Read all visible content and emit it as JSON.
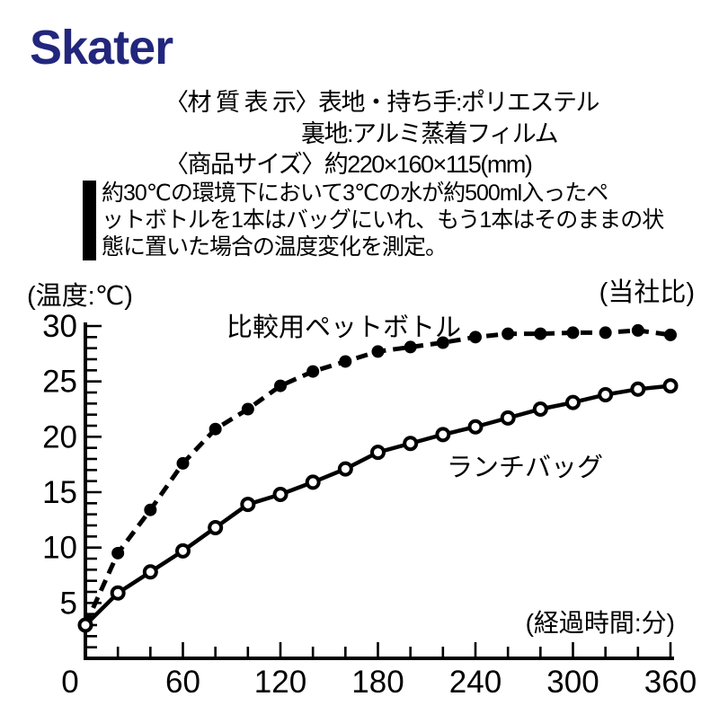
{
  "brand": {
    "logo_text": "Skater",
    "logo_color": "#22277d"
  },
  "specs": {
    "material_line1": "〈材 質 表 示〉表地・持ち手:ポリエステル",
    "material_line2": "裏地:アルミ蒸着フィルム",
    "size_line": "〈商品サイズ〉約220×160×115(mm)"
  },
  "description": {
    "lines": [
      "約30℃の環境下において3℃の水が約500ml入ったペ",
      "ットボトルを1本はバッグにいれ、もう1本はそのままの状",
      "態に置いた場合の温度変化を測定。"
    ]
  },
  "chart_data": {
    "type": "line",
    "title": "",
    "y_axis_label": "(温度:℃)",
    "x_axis_label": "(経過時間:分)",
    "top_right_note": "(当社比)",
    "x": [
      0,
      20,
      40,
      60,
      80,
      100,
      120,
      140,
      160,
      180,
      200,
      220,
      240,
      260,
      280,
      300,
      320,
      340,
      360
    ],
    "series": [
      {
        "name": "比較用ペットボトル",
        "style": "dashed",
        "marker": "filled-dot",
        "values": [
          3,
          9.5,
          13.4,
          17.6,
          20.7,
          22.5,
          24.6,
          25.9,
          26.8,
          27.7,
          28.1,
          28.5,
          29.0,
          29.3,
          29.3,
          29.4,
          29.4,
          29.6,
          29.2
        ]
      },
      {
        "name": "ランチバッグ",
        "style": "solid",
        "marker": "open-circle",
        "values": [
          3,
          5.9,
          7.8,
          9.7,
          11.8,
          13.9,
          14.8,
          15.9,
          17.1,
          18.6,
          19.4,
          20.2,
          20.9,
          21.7,
          22.5,
          23.1,
          23.8,
          24.3,
          24.6
        ]
      }
    ],
    "xlim": [
      0,
      360
    ],
    "ylim": [
      0,
      30
    ],
    "x_major_ticks": [
      0,
      60,
      120,
      180,
      240,
      300,
      360
    ],
    "x_minor_tick_step": 20,
    "y_major_ticks": [
      5,
      10,
      15,
      20,
      25,
      30
    ],
    "y_minor_tick_step": 1,
    "grid": false,
    "legend_position": "inline-labels",
    "line_color": "#000000"
  }
}
